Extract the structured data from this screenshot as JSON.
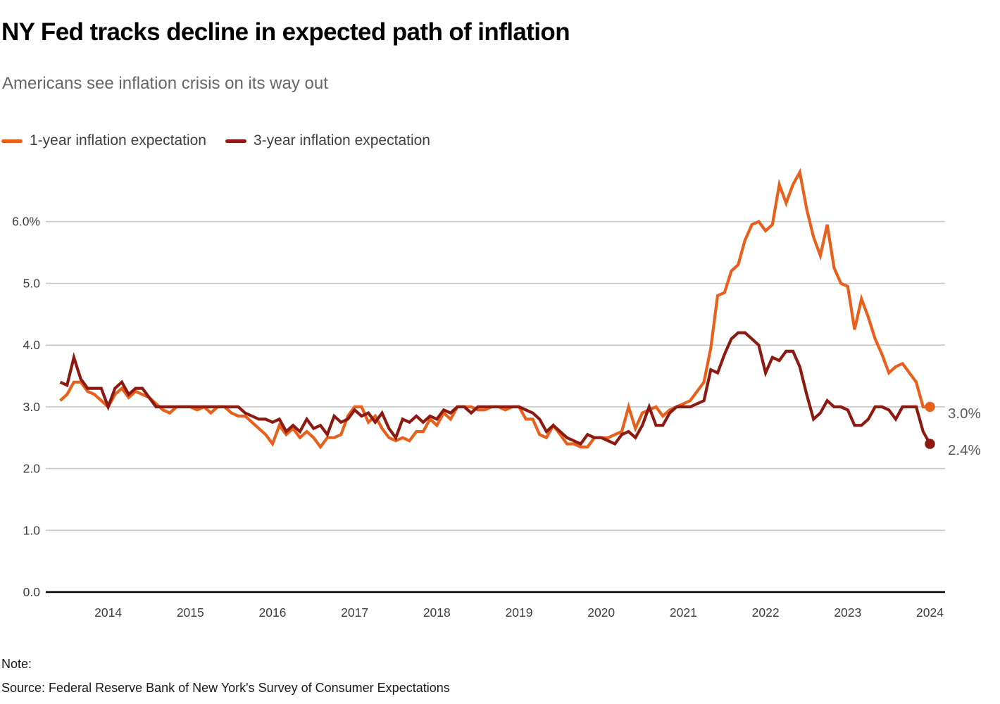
{
  "header": {
    "title": "NY Fed tracks decline in expected path of inflation",
    "subtitle": "Americans see inflation crisis on its way out"
  },
  "footer": {
    "note": "Note:",
    "source": "Source: Federal Reserve Bank of New York's Survey of Consumer Expectations"
  },
  "colors": {
    "orange_series": "#E8611C",
    "dark_red_series": "#8C1A10",
    "gridline": "#C9C9C9",
    "axis_baseline": "#000000",
    "axis_label": "#3D3D3D",
    "end_label": "#5B5B5B",
    "title": "#000000",
    "subtitle": "#666666"
  },
  "chart_data": {
    "type": "line",
    "title": "NY Fed tracks decline in expected path of inflation",
    "subtitle": "Americans see inflation crisis on its way out",
    "x_unit": "month",
    "x_start": "2013-06",
    "x_end": "2024-01",
    "x_tick_labels": [
      "2014",
      "2015",
      "2016",
      "2017",
      "2018",
      "2019",
      "2020",
      "2021",
      "2022",
      "2023",
      "2024"
    ],
    "y_ticks": [
      0,
      1,
      2,
      3,
      4,
      5,
      6
    ],
    "y_tick_labels": [
      "0.0",
      "1.0",
      "2.0",
      "3.0",
      "4.0",
      "5.0",
      "6.0%"
    ],
    "ylim": [
      0,
      6.95
    ],
    "grid": "horizontal",
    "legend_position": "top-left",
    "series": [
      {
        "name": "1-year inflation expectation",
        "color": "#E8611C",
        "end_label": "3.0%",
        "end_value": 3.0,
        "values": [
          3.1,
          3.2,
          3.4,
          3.4,
          3.25,
          3.2,
          3.1,
          3.0,
          3.2,
          3.3,
          3.15,
          3.25,
          3.2,
          3.15,
          3.05,
          2.95,
          2.9,
          3.0,
          3.0,
          3.0,
          2.95,
          3.0,
          2.9,
          3.0,
          3.0,
          2.9,
          2.85,
          2.85,
          2.75,
          2.65,
          2.55,
          2.4,
          2.7,
          2.55,
          2.65,
          2.5,
          2.6,
          2.5,
          2.35,
          2.5,
          2.5,
          2.55,
          2.85,
          3.0,
          3.0,
          2.75,
          2.85,
          2.65,
          2.5,
          2.45,
          2.5,
          2.45,
          2.6,
          2.6,
          2.8,
          2.7,
          2.9,
          2.8,
          3.0,
          3.0,
          3.0,
          2.95,
          2.95,
          3.0,
          3.0,
          2.95,
          3.0,
          3.0,
          2.8,
          2.8,
          2.55,
          2.5,
          2.7,
          2.55,
          2.4,
          2.4,
          2.35,
          2.35,
          2.5,
          2.5,
          2.5,
          2.55,
          2.6,
          3.0,
          2.65,
          2.9,
          2.95,
          3.0,
          2.85,
          2.95,
          3.0,
          3.05,
          3.1,
          3.25,
          3.4,
          3.95,
          4.8,
          4.85,
          5.2,
          5.3,
          5.7,
          5.95,
          6.0,
          5.85,
          5.95,
          6.6,
          6.3,
          6.6,
          6.8,
          6.2,
          5.75,
          5.45,
          5.95,
          5.25,
          5.0,
          4.95,
          4.25,
          4.75,
          4.45,
          4.1,
          3.85,
          3.55,
          3.65,
          3.7,
          3.55,
          3.4,
          3.0,
          3.0
        ]
      },
      {
        "name": "3-year inflation expectation",
        "color": "#8C1A10",
        "end_label": "2.4%",
        "end_value": 2.4,
        "values": [
          3.4,
          3.35,
          3.8,
          3.45,
          3.3,
          3.3,
          3.3,
          3.0,
          3.3,
          3.4,
          3.2,
          3.3,
          3.3,
          3.15,
          3.0,
          3.0,
          3.0,
          3.0,
          3.0,
          3.0,
          3.0,
          3.0,
          3.0,
          3.0,
          3.0,
          3.0,
          3.0,
          2.9,
          2.85,
          2.8,
          2.8,
          2.75,
          2.8,
          2.6,
          2.7,
          2.6,
          2.8,
          2.65,
          2.7,
          2.55,
          2.85,
          2.75,
          2.8,
          2.95,
          2.85,
          2.9,
          2.75,
          2.9,
          2.65,
          2.5,
          2.8,
          2.75,
          2.85,
          2.75,
          2.85,
          2.8,
          2.95,
          2.9,
          3.0,
          3.0,
          2.9,
          3.0,
          3.0,
          3.0,
          3.0,
          3.0,
          3.0,
          3.0,
          2.95,
          2.9,
          2.8,
          2.6,
          2.7,
          2.6,
          2.5,
          2.45,
          2.4,
          2.55,
          2.5,
          2.5,
          2.45,
          2.4,
          2.55,
          2.6,
          2.5,
          2.7,
          3.0,
          2.7,
          2.7,
          2.9,
          3.0,
          3.0,
          3.0,
          3.05,
          3.1,
          3.6,
          3.55,
          3.85,
          4.1,
          4.2,
          4.2,
          4.1,
          4.0,
          3.55,
          3.8,
          3.75,
          3.9,
          3.9,
          3.65,
          3.2,
          2.8,
          2.9,
          3.1,
          3.0,
          3.0,
          2.95,
          2.7,
          2.7,
          2.8,
          3.0,
          3.0,
          2.95,
          2.8,
          3.0,
          3.0,
          3.0,
          2.6,
          2.4
        ]
      }
    ]
  }
}
